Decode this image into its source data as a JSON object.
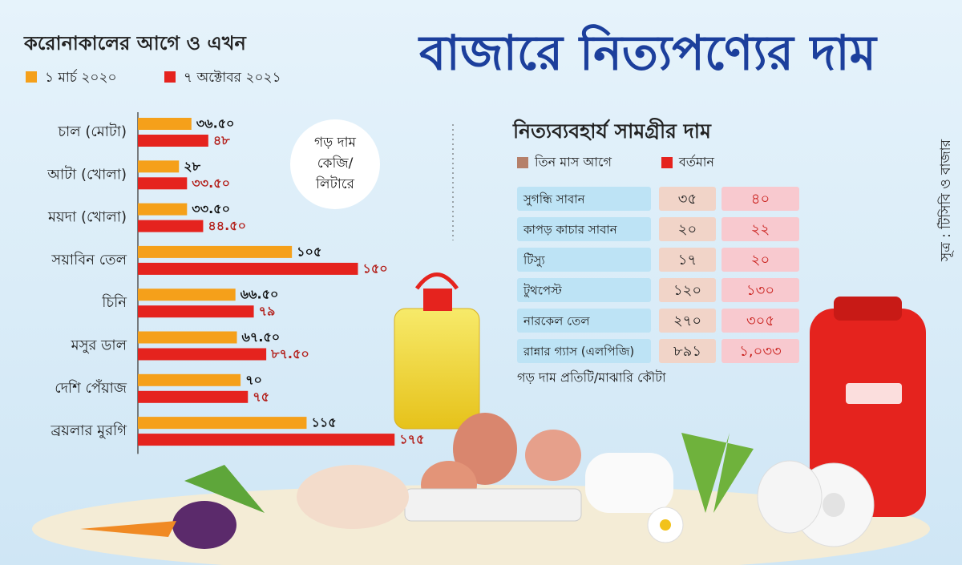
{
  "title": "বাজারে নিত্যপণ্যের দাম",
  "source": "সূত্র : টিসিবি ও বাজার",
  "chart_data": {
    "type": "bar",
    "orientation": "horizontal",
    "title": "করোনাকালের আগে ও এখন",
    "annotation": [
      "গড় দাম",
      "কেজি/",
      "লিটারে"
    ],
    "categories": [
      "চাল (মোটা)",
      "আটা (খোলা)",
      "ময়দা (খোলা)",
      "সয়াবিন তেল",
      "চিনি",
      "মসুর ডাল",
      "দেশি পেঁয়াজ",
      "ব্রয়লার মুরগি"
    ],
    "series": [
      {
        "name": "১ মার্চ ২০২০",
        "color": "#f5a01a",
        "values": [
          36.5,
          28,
          33.5,
          105,
          66.5,
          67.5,
          70,
          115
        ],
        "value_labels": [
          "৩৬.৫০",
          "২৮",
          "৩৩.৫০",
          "১০৫",
          "৬৬.৫০",
          "৬৭.৫০",
          "৭০",
          "১১৫"
        ]
      },
      {
        "name": "৭ অক্টোবর ২০২১",
        "color": "#e5231e",
        "values": [
          48,
          33.5,
          44.5,
          150,
          79,
          87.5,
          75,
          175
        ],
        "value_labels": [
          "৪৮",
          "৩৩.৫০",
          "৪৪.৫০",
          "১৫০",
          "৭৯",
          "৮৭.৫০",
          "৭৫",
          "১৭৫"
        ]
      }
    ]
  },
  "table": {
    "title": "নিত্যব্যবহার্য সামগ্রীর দাম",
    "legend": [
      {
        "name": "তিন মাস আগে",
        "color": "#b5806a"
      },
      {
        "name": "বর্তমান",
        "color": "#e5231e"
      }
    ],
    "rows": [
      [
        "সুগন্ধি সাবান",
        "৩৫",
        "৪০"
      ],
      [
        "কাপড় কাচার সাবান",
        "২০",
        "২২"
      ],
      [
        "টিস্যু",
        "১৭",
        "২০"
      ],
      [
        "টুথপেস্ট",
        "১২০",
        "১৩০"
      ],
      [
        "নারকেল তেল",
        "২৭০",
        "৩০৫"
      ],
      [
        "রান্নার গ্যাস (এলপিজি)",
        "৮৯১",
        "১,০৩৩"
      ]
    ],
    "note": "গড় দাম প্রতিটি/মাঝারি কৌটা"
  }
}
